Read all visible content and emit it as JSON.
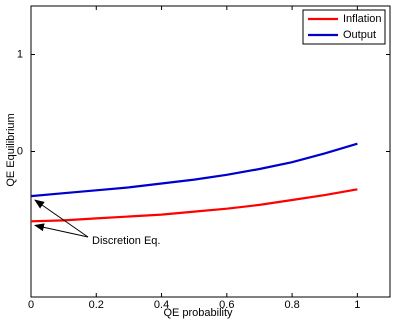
{
  "chart_data": {
    "type": "line",
    "x_label": "QE probability",
    "y_label": "QE Equilibrium",
    "x": [
      0,
      0.1,
      0.2,
      0.3,
      0.4,
      0.5,
      0.6,
      0.7,
      0.8,
      0.9,
      1
    ],
    "series": [
      {
        "name": "Inflation",
        "color": "#ff0000",
        "values": [
          -0.72,
          -0.71,
          -0.69,
          -0.67,
          -0.65,
          -0.62,
          -0.59,
          -0.55,
          -0.5,
          -0.45,
          -0.39
        ]
      },
      {
        "name": "Output",
        "color": "#0000cc",
        "values": [
          -0.46,
          -0.43,
          -0.4,
          -0.37,
          -0.33,
          -0.29,
          -0.24,
          -0.18,
          -0.11,
          -0.02,
          0.08
        ]
      }
    ],
    "xlim": [
      0,
      1.1
    ],
    "xticks": [
      0,
      0.2,
      0.4,
      0.6,
      0.8,
      1
    ],
    "ylim": [
      -1.5,
      1.5
    ],
    "yticks": [
      0,
      1
    ],
    "legend": "upper right",
    "annotation": "Discretion Eq."
  }
}
